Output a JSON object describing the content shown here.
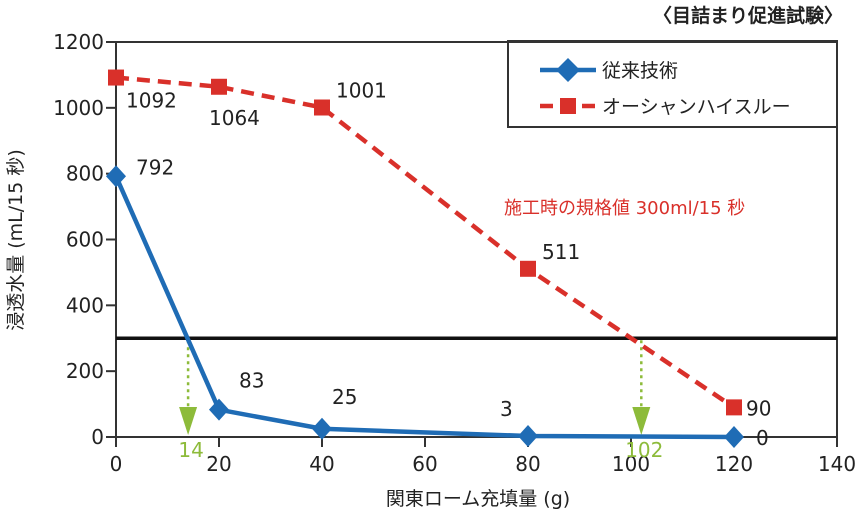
{
  "chart_data": {
    "type": "line",
    "title": "〈目詰まり促進試験〉",
    "xlabel": "関東ローム充填量 (g)",
    "ylabel": "浸透水量 (mL/15 秒)",
    "xlim": [
      0,
      140
    ],
    "ylim": [
      0,
      1200
    ],
    "xticks": [
      0,
      20,
      40,
      60,
      80,
      100,
      120,
      140
    ],
    "yticks": [
      0,
      200,
      400,
      600,
      800,
      1000,
      1200
    ],
    "grid": false,
    "legend_position": "top-right",
    "series": [
      {
        "name": "従来技術",
        "color": "#1f6cb5",
        "style": "solid",
        "marker": "diamond",
        "x": [
          0,
          20,
          40,
          80,
          120
        ],
        "y": [
          792,
          83,
          25,
          3,
          0
        ],
        "labels": [
          "792",
          "83",
          "25",
          "3",
          "0"
        ]
      },
      {
        "name": "オーシャンハイスルー",
        "color": "#d9302a",
        "style": "dashed",
        "marker": "square",
        "x": [
          0,
          20,
          40,
          80,
          120
        ],
        "y": [
          1092,
          1064,
          1001,
          511,
          90
        ],
        "labels": [
          "1092",
          "1064",
          "1001",
          "511",
          "90"
        ]
      }
    ],
    "threshold": {
      "value": 300,
      "label": "施工時の規格値 300ml/15 秒",
      "label_color": "#d9302a"
    },
    "intercepts": [
      {
        "x": 14,
        "label": "14",
        "color": "#8dbb3a"
      },
      {
        "x": 102,
        "label": "102",
        "color": "#8dbb3a"
      }
    ]
  }
}
